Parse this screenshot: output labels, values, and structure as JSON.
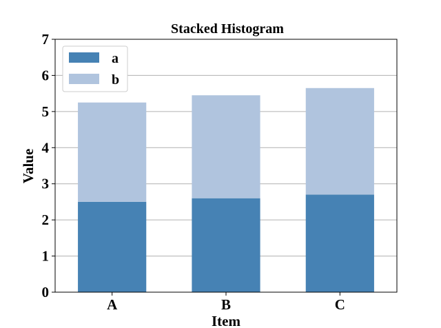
{
  "chart_data": {
    "type": "bar",
    "stacked": true,
    "title": "Stacked Histogram",
    "xlabel": "Item",
    "ylabel": "Value",
    "categories": [
      "A",
      "B",
      "C"
    ],
    "series": [
      {
        "name": "a",
        "values": [
          2.5,
          2.6,
          2.7
        ],
        "color": "#4682b4"
      },
      {
        "name": "b",
        "values": [
          2.75,
          2.85,
          2.95
        ],
        "color": "#b0c4de"
      }
    ],
    "ylim": [
      0,
      7
    ],
    "yticks": [
      "0",
      "1",
      "2",
      "3",
      "4",
      "5",
      "6",
      "7"
    ],
    "grid": "horizontal",
    "legend_position": "top-left"
  }
}
